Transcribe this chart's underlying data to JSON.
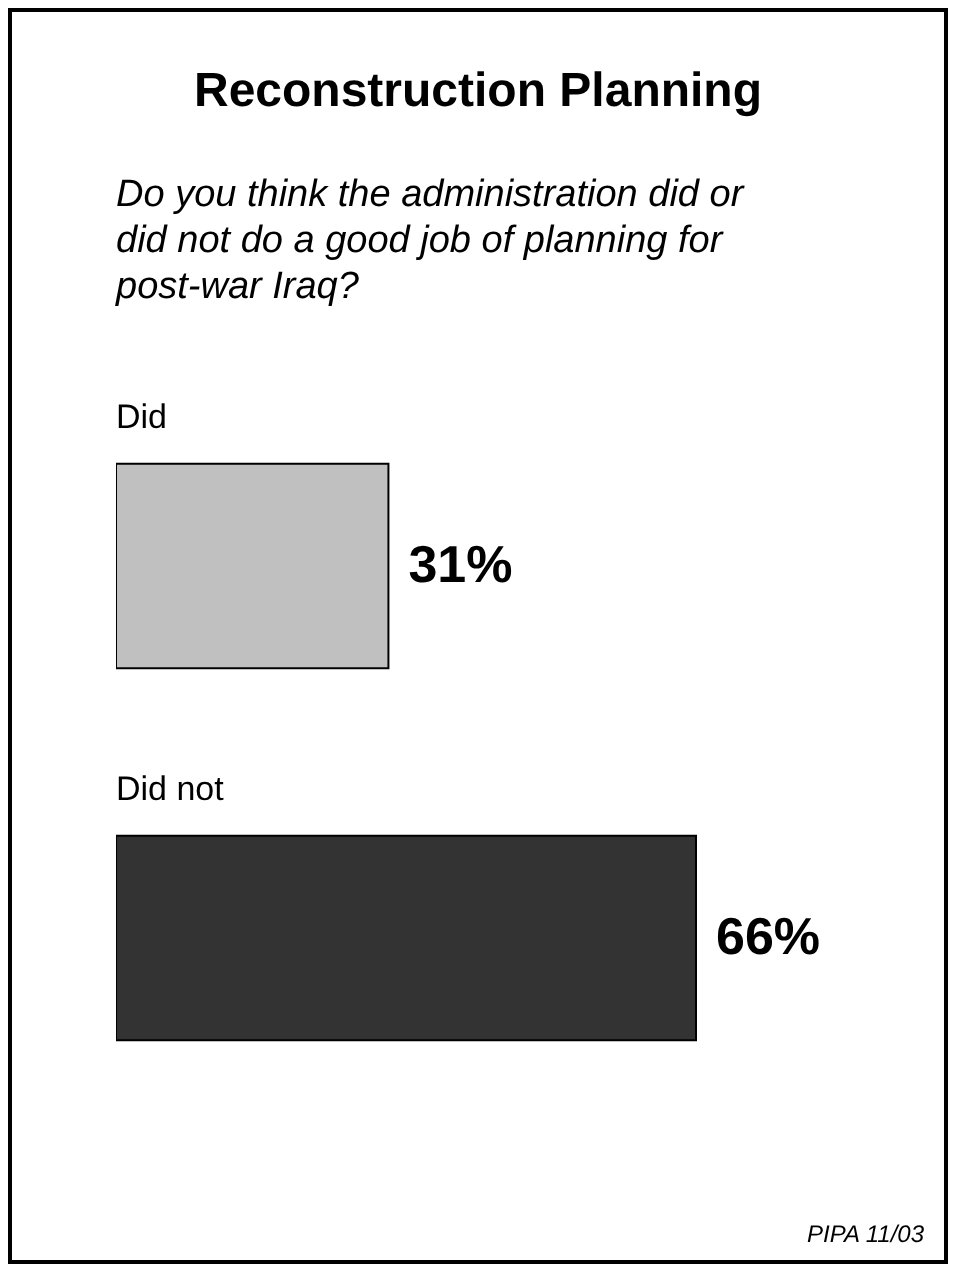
{
  "chart_data": {
    "type": "bar",
    "orientation": "horizontal",
    "title": "Reconstruction Planning",
    "subtitle": "Do you think the administration did or did not do a good job of planning for post-war Iraq?",
    "categories": [
      "Did",
      "Did not"
    ],
    "values": [
      31,
      66
    ],
    "colors": [
      "#c0c0c0",
      "#333333"
    ],
    "value_labels": [
      "31%",
      "66%"
    ],
    "annotations": [
      "PIPA 11/03"
    ]
  }
}
